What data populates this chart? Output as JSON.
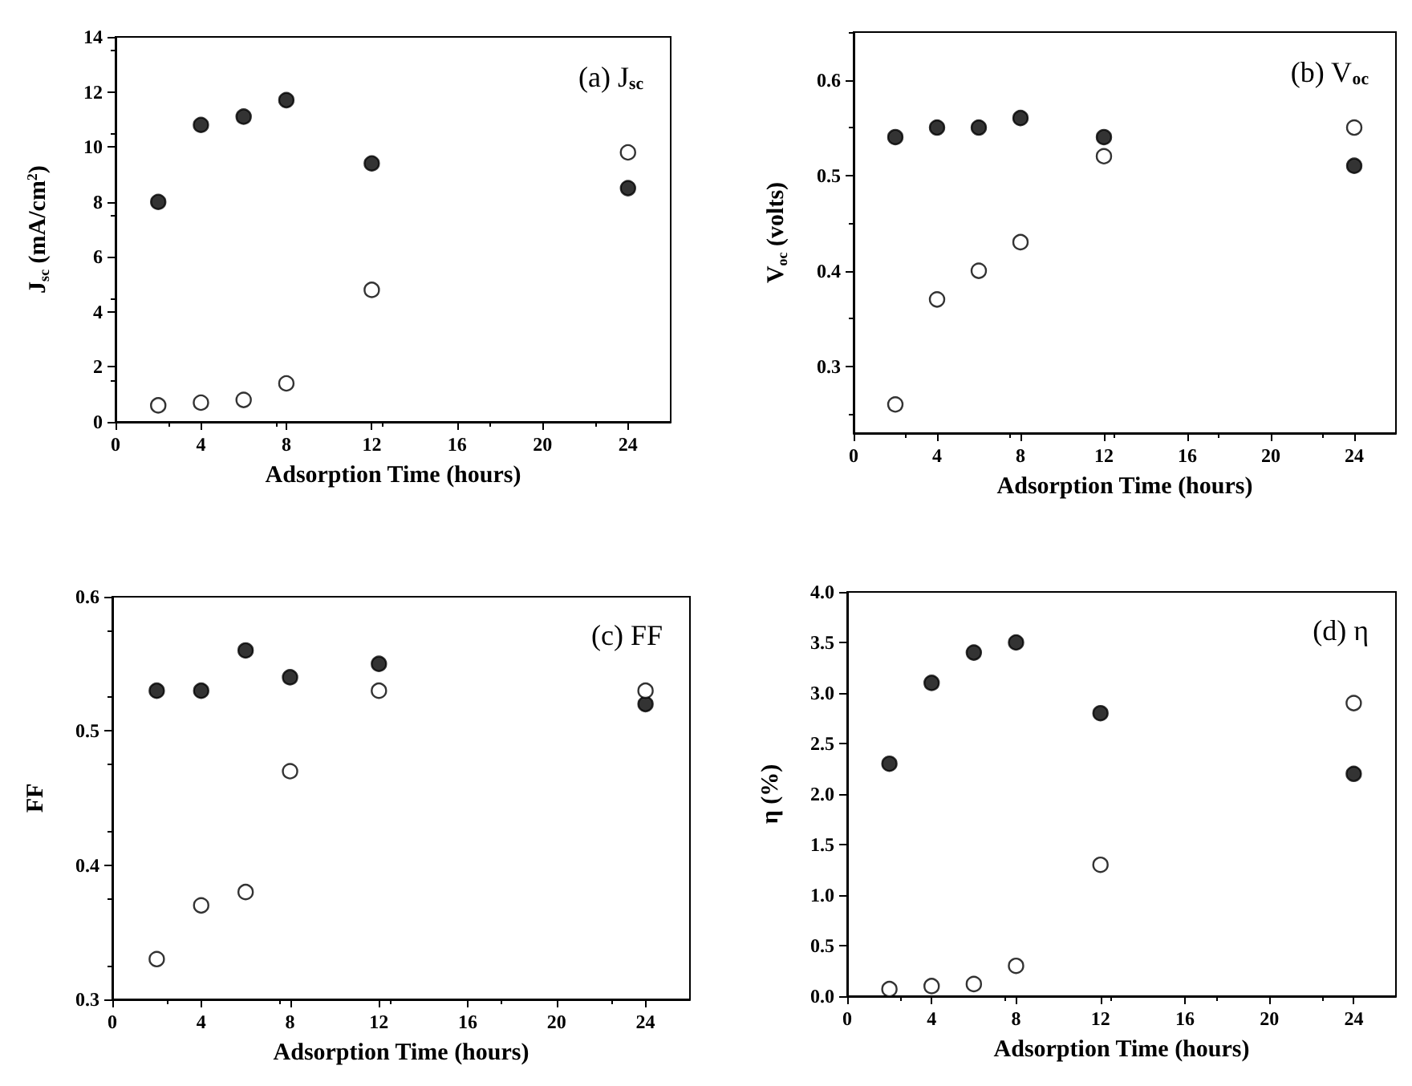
{
  "chart_data": [
    {
      "type": "scatter",
      "title": "(a) J$_{sc}$",
      "xlabel": "Adsorption Time (hours)",
      "ylabel": "J$_{sc}$ (mA/cm$^{2}$)",
      "x": [
        2,
        4,
        6,
        8,
        12,
        24
      ],
      "xlim": [
        0,
        26
      ],
      "xticks": [
        0,
        4,
        8,
        12,
        16,
        20,
        24
      ],
      "ylim": [
        0,
        14
      ],
      "yticks": [
        0,
        2,
        4,
        6,
        8,
        10,
        12,
        14
      ],
      "marker": "circle",
      "series": [
        {
          "color": "#000000",
          "values": [
            8.0,
            10.8,
            11.1,
            11.7,
            9.4,
            8.5
          ]
        },
        {
          "color": "#ffffff",
          "values": [
            0.6,
            0.7,
            0.8,
            1.4,
            4.8,
            9.8
          ]
        }
      ]
    },
    {
      "type": "scatter",
      "title": "(b) V$_{oc}$",
      "xlabel": "Adsorption Time (hours)",
      "ylabel": "V$_{oc}$ (volts)",
      "x": [
        2,
        4,
        6,
        8,
        12,
        24
      ],
      "xlim": [
        0,
        26
      ],
      "xticks": [
        0,
        4,
        8,
        12,
        16,
        20,
        24
      ],
      "ylim": [
        0.23,
        0.65
      ],
      "yticks": [
        0.3,
        0.4,
        0.5,
        0.6
      ],
      "marker": "circle",
      "series": [
        {
          "color": "#000000",
          "values": [
            0.54,
            0.55,
            0.55,
            0.56,
            0.54,
            0.51
          ]
        },
        {
          "color": "#ffffff",
          "values": [
            0.26,
            0.37,
            0.4,
            0.43,
            0.52,
            0.55
          ]
        }
      ]
    },
    {
      "type": "scatter",
      "title": "(c) FF",
      "xlabel": "Adsorption Time (hours)",
      "ylabel": "FF",
      "x": [
        2,
        4,
        6,
        8,
        12,
        24
      ],
      "xlim": [
        0,
        26
      ],
      "xticks": [
        0,
        4,
        8,
        12,
        16,
        20,
        24
      ],
      "ylim": [
        0.3,
        0.6
      ],
      "yticks": [
        0.3,
        0.4,
        0.5,
        0.6
      ],
      "marker": "circle",
      "series": [
        {
          "color": "#000000",
          "values": [
            0.53,
            0.53,
            0.56,
            0.54,
            0.55,
            0.52
          ]
        },
        {
          "color": "#ffffff",
          "values": [
            0.33,
            0.37,
            0.38,
            0.47,
            0.53,
            0.53
          ]
        }
      ]
    },
    {
      "type": "scatter",
      "title": "(d) η",
      "xlabel": "Adsorption Time (hours)",
      "ylabel": "η (%)",
      "x": [
        2,
        4,
        6,
        8,
        12,
        24
      ],
      "xlim": [
        0,
        26
      ],
      "xticks": [
        0,
        4,
        8,
        12,
        16,
        20,
        24
      ],
      "ylim": [
        0,
        4
      ],
      "yticks": [
        {
          "value": 0,
          "label": "0.0"
        },
        0.5,
        {
          "value": 1,
          "label": "1.0"
        },
        1.5,
        {
          "value": 2,
          "label": "2.0"
        },
        2.5,
        {
          "value": 3,
          "label": "3.0"
        },
        3.5,
        {
          "value": 4,
          "label": "4.0"
        }
      ],
      "marker": "circle",
      "series": [
        {
          "color": "#000000",
          "values": [
            2.3,
            3.1,
            3.4,
            3.5,
            2.8,
            2.2
          ]
        },
        {
          "color": "#ffffff",
          "values": [
            0.07,
            0.1,
            0.12,
            0.3,
            1.3,
            2.9
          ]
        }
      ]
    }
  ]
}
